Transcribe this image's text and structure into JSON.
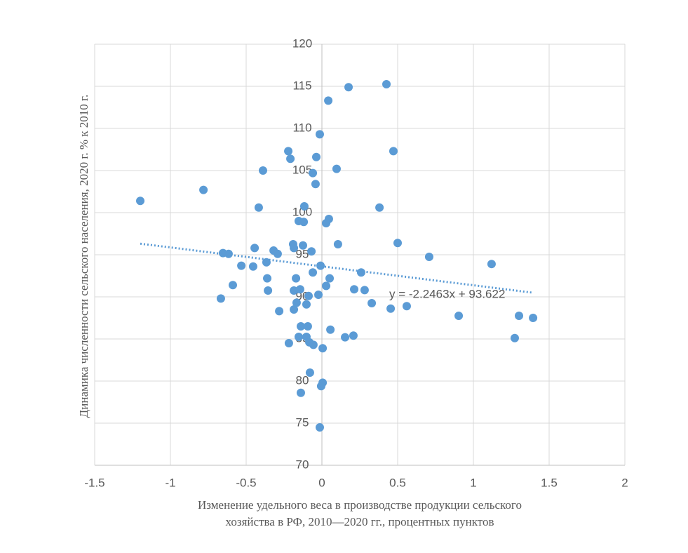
{
  "chart_data": {
    "type": "scatter",
    "xlabel": [
      "Изменение удельного веса в производстве продукции сельского",
      "хозяйства в РФ, 2010—2020 гг., процентных пунктов"
    ],
    "ylabel": "Динамика численности сельского населения, 2020 г.   % к 2010 г.",
    "xlim": [
      -1.5,
      2
    ],
    "xticks": [
      -1.5,
      -1,
      -0.5,
      0,
      0.5,
      1,
      1.5,
      2
    ],
    "ylim": [
      70,
      120
    ],
    "yticks": [
      70,
      75,
      80,
      85,
      90,
      95,
      100,
      105,
      110,
      115,
      120
    ],
    "grid": true,
    "color": "#5b9bd5",
    "x": [
      -1.199,
      -0.782,
      -0.653,
      -0.616,
      -0.667,
      -0.588,
      -0.532,
      -0.454,
      -0.444,
      -0.417,
      -0.389,
      -0.366,
      -0.361,
      -0.356,
      -0.319,
      -0.292,
      -0.282,
      -0.222,
      -0.208,
      -0.218,
      -0.19,
      -0.185,
      -0.185,
      -0.185,
      -0.171,
      -0.167,
      -0.153,
      -0.153,
      -0.144,
      -0.139,
      -0.139,
      -0.125,
      -0.12,
      -0.116,
      -0.102,
      -0.102,
      -0.093,
      -0.088,
      -0.083,
      -0.079,
      -0.069,
      -0.06,
      -0.06,
      -0.056,
      -0.042,
      -0.037,
      -0.023,
      -0.014,
      -0.014,
      -0.009,
      -0.005,
      0.005,
      0.005,
      0.028,
      0.028,
      0.042,
      0.046,
      0.051,
      0.056,
      0.097,
      0.106,
      0.153,
      0.176,
      0.208,
      0.213,
      0.259,
      0.282,
      0.329,
      0.38,
      0.426,
      0.454,
      0.472,
      0.5,
      0.56,
      0.708,
      0.903,
      1.12,
      1.273,
      1.301,
      1.394
    ],
    "values": [
      101.4,
      102.7,
      95.2,
      95.1,
      89.8,
      91.4,
      93.7,
      93.6,
      95.8,
      100.6,
      105.0,
      94.1,
      92.2,
      90.75,
      95.5,
      95.1,
      88.3,
      107.3,
      106.4,
      84.5,
      96.25,
      95.8,
      90.75,
      88.5,
      92.2,
      89.3,
      99.0,
      85.25,
      90.9,
      86.5,
      78.6,
      96.1,
      98.9,
      100.75,
      85.25,
      89.1,
      86.5,
      90.1,
      84.6,
      81.0,
      95.4,
      104.7,
      92.9,
      84.3,
      103.4,
      106.6,
      90.25,
      109.3,
      74.5,
      93.7,
      79.4,
      79.8,
      83.9,
      91.3,
      98.75,
      113.3,
      99.25,
      92.2,
      86.1,
      105.2,
      96.25,
      85.2,
      114.9,
      85.4,
      90.9,
      92.9,
      90.8,
      89.25,
      100.6,
      115.25,
      88.6,
      107.3,
      96.4,
      88.9,
      94.75,
      87.75,
      93.9,
      85.1,
      87.75,
      87.5
    ],
    "trendline": {
      "slope": -2.2463,
      "intercept": 93.622,
      "label": "y = -2.2463x + 93.622"
    }
  }
}
